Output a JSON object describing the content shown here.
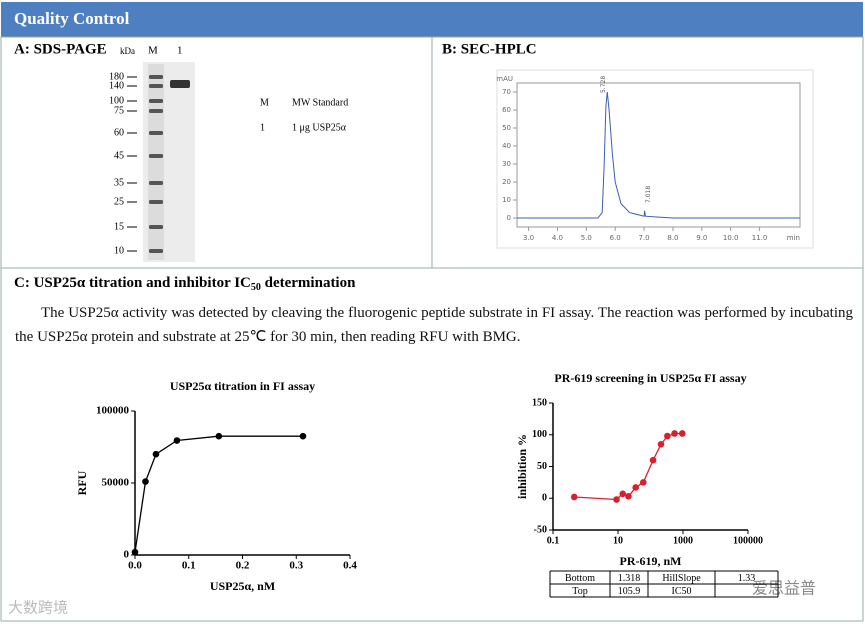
{
  "header": {
    "title": "Quality Control"
  },
  "panel_a": {
    "title": "A: SDS-PAGE",
    "unit": "kDa",
    "lanes": [
      "M",
      "1"
    ],
    "markers": [
      180,
      140,
      100,
      75,
      60,
      45,
      35,
      25,
      15,
      10
    ],
    "legend": [
      [
        "M",
        "MW Standard"
      ],
      [
        "1",
        "1 μg USP25α"
      ]
    ]
  },
  "panel_b": {
    "title": "B: SEC-HPLC",
    "chart": {
      "type": "line",
      "x_label": "min",
      "y_label": "mAU",
      "annotations": [
        "5.728",
        "7.018"
      ],
      "color": "#3a5fb0",
      "x": [
        2.6,
        5.4,
        5.55,
        5.62,
        5.68,
        5.728,
        5.8,
        5.9,
        6.0,
        6.2,
        6.5,
        7.0,
        7.018,
        7.05,
        7.5,
        8.0,
        9.0,
        10.0,
        11.0,
        11.5,
        12.4
      ],
      "values": [
        0,
        0,
        3,
        30,
        62,
        70,
        58,
        36,
        20,
        8,
        3,
        1,
        4,
        1,
        0.5,
        0,
        0,
        0,
        0,
        0,
        0
      ],
      "xlim": [
        2.6,
        12.4
      ],
      "xticks": [
        {
          "value": 3,
          "label": "3.0"
        },
        {
          "value": 4,
          "label": "4.0"
        },
        {
          "value": 5,
          "label": "5.0"
        },
        {
          "value": 6,
          "label": "6.0"
        },
        {
          "value": 7,
          "label": "7.0"
        },
        {
          "value": 8,
          "label": "8.0"
        },
        {
          "value": 9,
          "label": "9.0"
        },
        {
          "value": 10,
          "label": "10.0"
        },
        {
          "value": 11,
          "label": "11.0"
        }
      ],
      "ylim": [
        -5,
        75
      ],
      "yticks": [
        0,
        10,
        20,
        30,
        40,
        50,
        60,
        70
      ]
    }
  },
  "panel_c": {
    "title": "C: USP25α titration and inhibitor IC",
    "title_subscript": "50",
    "title_suffix": " determination",
    "paragraph": "The USP25α activity was detected by cleaving the fluorogenic peptide substrate in FI assay. The reaction was performed by incubating the USP25α protein and substrate at 25℃ for 30 min, then reading RFU with BMG.",
    "titration": {
      "type": "scatter-line",
      "title": "USP25α titration in FI assay",
      "x_label": "USP25α, nM",
      "y_label": "RFU",
      "color": "#000000",
      "x": [
        0,
        0.0195,
        0.039,
        0.078,
        0.156,
        0.3125
      ],
      "values": [
        2000,
        51000,
        70000,
        79500,
        82500,
        82500
      ],
      "xlim": [
        0,
        0.4
      ],
      "xticks": [
        {
          "value": 0,
          "label": "0.0"
        },
        {
          "value": 0.1,
          "label": "0.1"
        },
        {
          "value": 0.2,
          "label": "0.2"
        },
        {
          "value": 0.3,
          "label": "0.3"
        },
        {
          "value": 0.4,
          "label": "0.4"
        }
      ],
      "ylim": [
        0,
        100000
      ],
      "yticks": [
        0,
        50000,
        100000
      ]
    },
    "screening": {
      "type": "scatter-line",
      "title": "PR-619 screening in USP25α FI assay",
      "x_label": "PR-619, nM",
      "y_label": "inhibition %",
      "color": "#d9202c",
      "x_scale": "log",
      "x": [
        0.45,
        9,
        14,
        21,
        35,
        60,
        120,
        210,
        330,
        550,
        950
      ],
      "values": [
        2,
        -2,
        7,
        3,
        17,
        25,
        60,
        85,
        98,
        102,
        102
      ],
      "xlim": [
        0.1,
        100000
      ],
      "xticks": [
        0.1,
        10,
        1000,
        100000
      ],
      "ylim": [
        -50,
        150
      ],
      "yticks": [
        -50,
        0,
        50,
        100,
        150
      ],
      "fit_table": [
        [
          "Bottom",
          "1.318",
          "HillSlope",
          "1.33"
        ],
        [
          "Top",
          "105.9",
          "IC50"
        ]
      ]
    }
  },
  "watermarks": [
    "大数跨境",
    "爱思益普"
  ]
}
